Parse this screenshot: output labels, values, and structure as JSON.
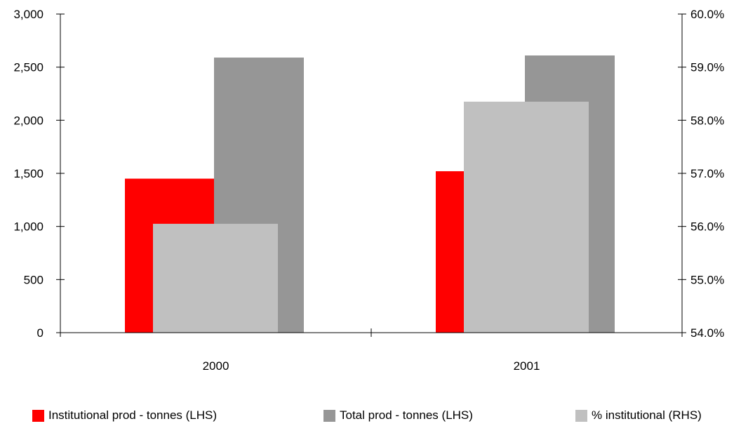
{
  "chart_data": {
    "type": "bar",
    "categories": [
      "2000",
      "2001"
    ],
    "series": [
      {
        "name": "Institutional prod - tonnes (LHS)",
        "axis": "left",
        "values": [
          1450,
          1520
        ],
        "color": "#ff0000"
      },
      {
        "name": "Total prod - tonnes (LHS)",
        "axis": "left",
        "values": [
          2590,
          2610
        ],
        "color": "#969696"
      },
      {
        "name": "% institutional (RHS)",
        "axis": "right",
        "values": [
          56.05,
          58.35
        ],
        "color": "#c0c0c0"
      }
    ],
    "left_axis": {
      "ylim": [
        0,
        3000
      ],
      "ticks": [
        "0",
        "500",
        "1,000",
        "1,500",
        "2,000",
        "2,500",
        "3,000"
      ]
    },
    "right_axis": {
      "ylim": [
        54.0,
        60.0
      ],
      "ticks": [
        "54.0%",
        "55.0%",
        "56.0%",
        "57.0%",
        "58.0%",
        "59.0%",
        "60.0%"
      ]
    },
    "grid": false,
    "legend_position": "bottom"
  }
}
